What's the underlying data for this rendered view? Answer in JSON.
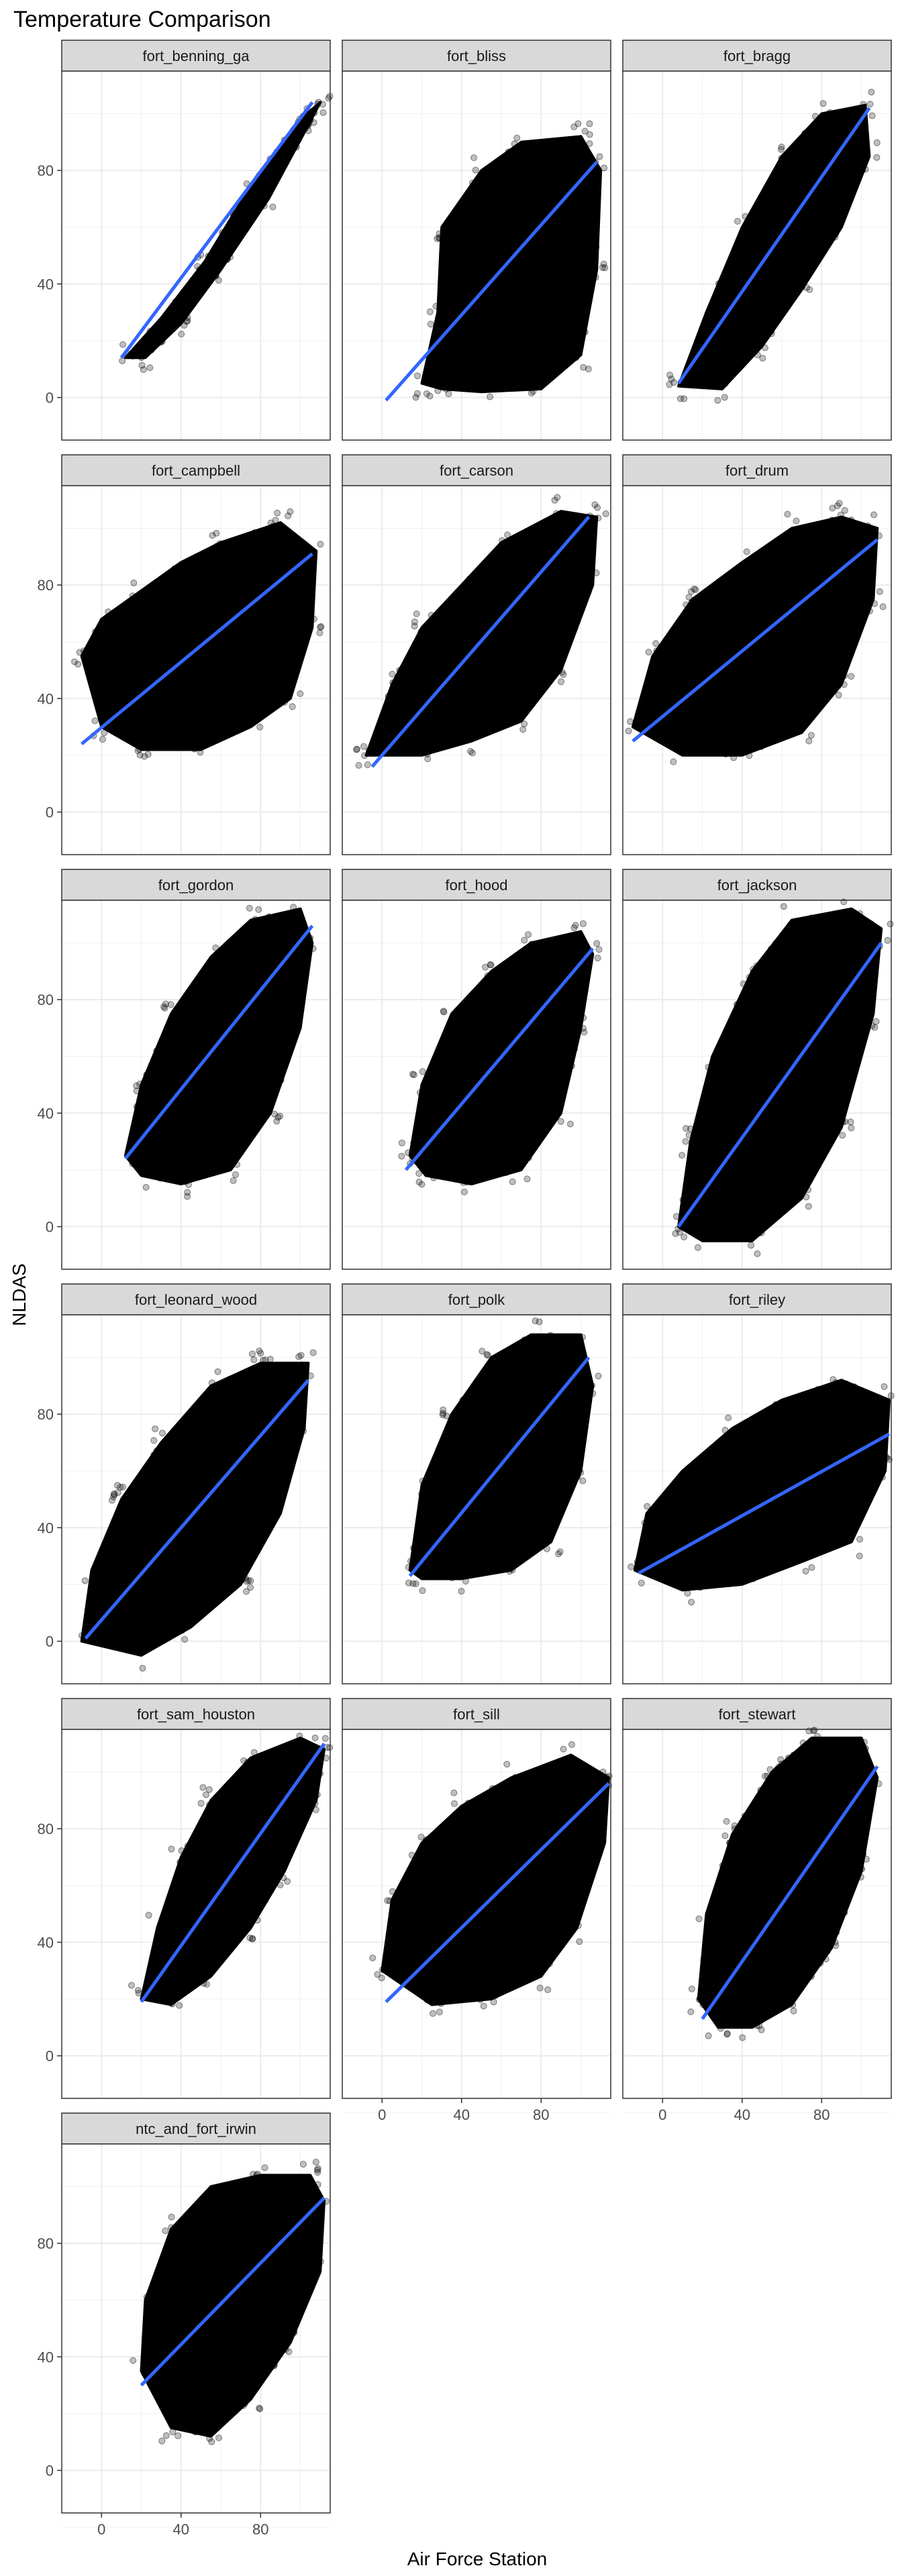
{
  "chart_data": {
    "type": "scatter",
    "title": "Temperature Comparison",
    "xlabel": "Air Force Station",
    "ylabel": "NLDAS",
    "xlim": [
      -20,
      115
    ],
    "ylim": [
      -15,
      115
    ],
    "x_ticks": [
      0,
      40,
      80
    ],
    "y_ticks": [
      0,
      40,
      80
    ],
    "grid": true,
    "layout": "facet_wrap_3_columns",
    "point_color": "#000000",
    "fit_line_color": "#3366ff",
    "strip_fill": "#d9d9d9",
    "panels": [
      {
        "name": "fort_benning_ga",
        "fit": [
          [
            10,
            14
          ],
          [
            106,
            104
          ]
        ],
        "cloud": [
          [
            12,
            14
          ],
          [
            30,
            28
          ],
          [
            52,
            48
          ],
          [
            78,
            78
          ],
          [
            100,
            98
          ],
          [
            110,
            104
          ],
          [
            104,
            96
          ],
          [
            84,
            70
          ],
          [
            60,
            45
          ],
          [
            40,
            26
          ],
          [
            22,
            14
          ]
        ]
      },
      {
        "name": "fort_bliss",
        "fit": [
          [
            2,
            -1
          ],
          [
            108,
            83
          ]
        ],
        "cloud": [
          [
            20,
            5
          ],
          [
            28,
            30
          ],
          [
            30,
            60
          ],
          [
            50,
            80
          ],
          [
            70,
            90
          ],
          [
            100,
            92
          ],
          [
            110,
            80
          ],
          [
            108,
            45
          ],
          [
            100,
            15
          ],
          [
            80,
            3
          ],
          [
            50,
            2
          ],
          [
            30,
            3
          ]
        ]
      },
      {
        "name": "fort_bragg",
        "fit": [
          [
            8,
            5
          ],
          [
            104,
            102
          ]
        ],
        "cloud": [
          [
            8,
            4
          ],
          [
            22,
            30
          ],
          [
            40,
            60
          ],
          [
            60,
            85
          ],
          [
            80,
            100
          ],
          [
            102,
            103
          ],
          [
            104,
            85
          ],
          [
            90,
            60
          ],
          [
            70,
            38
          ],
          [
            50,
            18
          ],
          [
            30,
            3
          ]
        ]
      },
      {
        "name": "fort_campbell",
        "fit": [
          [
            -10,
            24
          ],
          [
            106,
            91
          ]
        ],
        "cloud": [
          [
            -10,
            55
          ],
          [
            0,
            68
          ],
          [
            20,
            78
          ],
          [
            40,
            88
          ],
          [
            60,
            95
          ],
          [
            90,
            102
          ],
          [
            108,
            92
          ],
          [
            106,
            65
          ],
          [
            95,
            40
          ],
          [
            75,
            30
          ],
          [
            50,
            22
          ],
          [
            20,
            22
          ],
          [
            0,
            30
          ]
        ]
      },
      {
        "name": "fort_carson",
        "fit": [
          [
            -5,
            16
          ],
          [
            104,
            104
          ]
        ],
        "cloud": [
          [
            -8,
            20
          ],
          [
            5,
            45
          ],
          [
            20,
            65
          ],
          [
            40,
            80
          ],
          [
            60,
            95
          ],
          [
            90,
            106
          ],
          [
            108,
            104
          ],
          [
            106,
            80
          ],
          [
            90,
            50
          ],
          [
            70,
            32
          ],
          [
            45,
            25
          ],
          [
            20,
            20
          ]
        ]
      },
      {
        "name": "fort_drum",
        "fit": [
          [
            -15,
            25
          ],
          [
            108,
            96
          ]
        ],
        "cloud": [
          [
            -15,
            30
          ],
          [
            -5,
            55
          ],
          [
            15,
            75
          ],
          [
            40,
            88
          ],
          [
            65,
            100
          ],
          [
            90,
            104
          ],
          [
            108,
            100
          ],
          [
            106,
            75
          ],
          [
            90,
            45
          ],
          [
            70,
            28
          ],
          [
            40,
            20
          ],
          [
            10,
            20
          ]
        ]
      },
      {
        "name": "fort_gordon",
        "fit": [
          [
            12,
            24
          ],
          [
            106,
            106
          ]
        ],
        "cloud": [
          [
            12,
            25
          ],
          [
            20,
            50
          ],
          [
            35,
            75
          ],
          [
            55,
            95
          ],
          [
            75,
            108
          ],
          [
            100,
            112
          ],
          [
            106,
            100
          ],
          [
            100,
            70
          ],
          [
            85,
            40
          ],
          [
            65,
            20
          ],
          [
            40,
            15
          ],
          [
            20,
            18
          ]
        ]
      },
      {
        "name": "fort_hood",
        "fit": [
          [
            12,
            20
          ],
          [
            106,
            98
          ]
        ],
        "cloud": [
          [
            14,
            25
          ],
          [
            20,
            50
          ],
          [
            35,
            75
          ],
          [
            55,
            90
          ],
          [
            75,
            100
          ],
          [
            100,
            104
          ],
          [
            106,
            96
          ],
          [
            100,
            70
          ],
          [
            90,
            40
          ],
          [
            70,
            20
          ],
          [
            45,
            15
          ],
          [
            22,
            18
          ]
        ]
      },
      {
        "name": "fort_jackson",
        "fit": [
          [
            8,
            0
          ],
          [
            110,
            100
          ]
        ],
        "cloud": [
          [
            8,
            0
          ],
          [
            14,
            30
          ],
          [
            25,
            60
          ],
          [
            45,
            90
          ],
          [
            65,
            108
          ],
          [
            95,
            112
          ],
          [
            110,
            105
          ],
          [
            106,
            75
          ],
          [
            90,
            35
          ],
          [
            70,
            10
          ],
          [
            45,
            -5
          ],
          [
            20,
            -5
          ]
        ]
      },
      {
        "name": "fort_leonard_wood",
        "fit": [
          [
            -8,
            1
          ],
          [
            104,
            92
          ]
        ],
        "cloud": [
          [
            -10,
            0
          ],
          [
            -5,
            25
          ],
          [
            10,
            50
          ],
          [
            30,
            70
          ],
          [
            55,
            90
          ],
          [
            80,
            98
          ],
          [
            104,
            98
          ],
          [
            102,
            75
          ],
          [
            90,
            45
          ],
          [
            70,
            20
          ],
          [
            45,
            5
          ],
          [
            20,
            -5
          ]
        ]
      },
      {
        "name": "fort_polk",
        "fit": [
          [
            14,
            23
          ],
          [
            104,
            100
          ]
        ],
        "cloud": [
          [
            14,
            25
          ],
          [
            20,
            55
          ],
          [
            35,
            80
          ],
          [
            55,
            100
          ],
          [
            75,
            108
          ],
          [
            100,
            108
          ],
          [
            106,
            90
          ],
          [
            100,
            60
          ],
          [
            85,
            35
          ],
          [
            65,
            25
          ],
          [
            40,
            22
          ],
          [
            20,
            22
          ]
        ]
      },
      {
        "name": "fort_riley",
        "fit": [
          [
            -12,
            24
          ],
          [
            114,
            73
          ]
        ],
        "cloud": [
          [
            -14,
            25
          ],
          [
            -8,
            45
          ],
          [
            10,
            60
          ],
          [
            35,
            75
          ],
          [
            60,
            85
          ],
          [
            90,
            92
          ],
          [
            114,
            85
          ],
          [
            112,
            60
          ],
          [
            95,
            35
          ],
          [
            70,
            28
          ],
          [
            40,
            20
          ],
          [
            10,
            18
          ]
        ]
      },
      {
        "name": "fort_sam_houston",
        "fit": [
          [
            20,
            19
          ],
          [
            112,
            110
          ]
        ],
        "cloud": [
          [
            20,
            20
          ],
          [
            28,
            45
          ],
          [
            40,
            70
          ],
          [
            55,
            90
          ],
          [
            75,
            105
          ],
          [
            100,
            112
          ],
          [
            112,
            108
          ],
          [
            108,
            90
          ],
          [
            92,
            65
          ],
          [
            75,
            45
          ],
          [
            55,
            28
          ],
          [
            35,
            18
          ]
        ]
      },
      {
        "name": "fort_sill",
        "fit": [
          [
            2,
            19
          ],
          [
            114,
            96
          ]
        ],
        "cloud": [
          [
            0,
            30
          ],
          [
            5,
            55
          ],
          [
            20,
            75
          ],
          [
            40,
            88
          ],
          [
            65,
            98
          ],
          [
            95,
            106
          ],
          [
            114,
            98
          ],
          [
            112,
            75
          ],
          [
            98,
            45
          ],
          [
            80,
            28
          ],
          [
            55,
            20
          ],
          [
            25,
            18
          ]
        ]
      },
      {
        "name": "fort_stewart",
        "fit": [
          [
            20,
            13
          ],
          [
            108,
            102
          ]
        ],
        "cloud": [
          [
            18,
            20
          ],
          [
            22,
            50
          ],
          [
            35,
            78
          ],
          [
            55,
            100
          ],
          [
            75,
            112
          ],
          [
            100,
            112
          ],
          [
            108,
            98
          ],
          [
            100,
            65
          ],
          [
            85,
            38
          ],
          [
            65,
            18
          ],
          [
            45,
            10
          ],
          [
            28,
            10
          ]
        ]
      },
      {
        "name": "ntc_and_fort_irwin",
        "fit": [
          [
            20,
            30
          ],
          [
            112,
            96
          ]
        ],
        "cloud": [
          [
            20,
            35
          ],
          [
            22,
            60
          ],
          [
            35,
            85
          ],
          [
            55,
            100
          ],
          [
            80,
            104
          ],
          [
            105,
            104
          ],
          [
            112,
            95
          ],
          [
            110,
            70
          ],
          [
            95,
            45
          ],
          [
            75,
            25
          ],
          [
            55,
            12
          ],
          [
            35,
            15
          ]
        ]
      }
    ]
  }
}
